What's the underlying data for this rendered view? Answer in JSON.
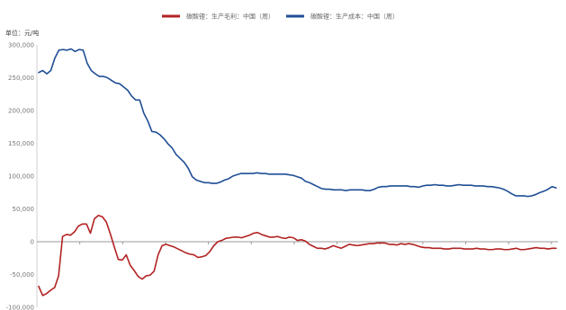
{
  "chart_data": {
    "type": "line",
    "unit_label": "单位：元/吨",
    "y_ticks": [
      "300,000",
      "250,000",
      "200,000",
      "150,000",
      "100,000",
      "50,000",
      "0",
      "-50,000",
      "-100,000"
    ],
    "ylim": [
      -100000,
      300000
    ],
    "grid": false,
    "legend_position": "top-center",
    "x_tick_count": 12,
    "series": [
      {
        "name": "碳酸锂：生产毛利：中国（周）",
        "color": "#b22222",
        "values": [
          -68000,
          -82000,
          -79000,
          -74000,
          -70000,
          -52000,
          8000,
          11000,
          10000,
          15000,
          24000,
          27000,
          27000,
          13000,
          35000,
          40000,
          38000,
          30000,
          12000,
          -8000,
          -27000,
          -28000,
          -20000,
          -36000,
          -44000,
          -53000,
          -57000,
          -52000,
          -51000,
          -45000,
          -20000,
          -6000,
          -4000,
          -6000,
          -8000,
          -11000,
          -14000,
          -17000,
          -19000,
          -20000,
          -24000,
          -23000,
          -21000,
          -15000,
          -6000,
          0,
          2000,
          5000,
          6000,
          7000,
          7000,
          6000,
          8000,
          10000,
          13000,
          14000,
          11000,
          9000,
          7000,
          7000,
          8000,
          6000,
          5000,
          7000,
          6000,
          2000,
          3000,
          1000,
          -4000,
          -7000,
          -10000,
          -10000,
          -11000,
          -9000,
          -6000,
          -8000,
          -10000,
          -7000,
          -4000,
          -5000,
          -6000,
          -5000,
          -4000,
          -3000,
          -3000,
          -2000,
          -2000,
          -2000,
          -4000,
          -4000,
          -5000,
          -3000,
          -4000,
          -3000,
          -4000,
          -6000,
          -8000,
          -9000,
          -9000,
          -10000,
          -10000,
          -10000,
          -11000,
          -11000,
          -10000,
          -10000,
          -10000,
          -11000,
          -11000,
          -11000,
          -10000,
          -11000,
          -11000,
          -12000,
          -12000,
          -11000,
          -11000,
          -12000,
          -12000,
          -11000,
          -10000,
          -12000,
          -12000,
          -11000,
          -10000,
          -9000,
          -10000,
          -10000,
          -11000,
          -10000,
          -10000
        ]
      },
      {
        "name": "碳酸锂：生产成本：中国（周）",
        "color": "#1f4e96",
        "values": [
          258000,
          261000,
          256000,
          261000,
          280000,
          292000,
          293000,
          292000,
          294000,
          290000,
          293000,
          292000,
          272000,
          261000,
          256000,
          252000,
          252000,
          250000,
          246000,
          242000,
          241000,
          236000,
          231000,
          222000,
          216000,
          216000,
          196000,
          184000,
          168000,
          167000,
          163000,
          157000,
          149000,
          143000,
          133000,
          127000,
          121000,
          112000,
          99000,
          94000,
          92000,
          90000,
          90000,
          89000,
          89000,
          91000,
          94000,
          96000,
          100000,
          102000,
          104000,
          104000,
          104000,
          104000,
          105000,
          104000,
          104000,
          103000,
          103000,
          103000,
          103000,
          103000,
          102000,
          101000,
          99000,
          97000,
          92000,
          90000,
          87000,
          84000,
          81000,
          80000,
          80000,
          79000,
          79000,
          79000,
          78000,
          79000,
          79000,
          79000,
          79000,
          78000,
          78000,
          80000,
          83000,
          84000,
          84000,
          85000,
          85000,
          85000,
          85000,
          85000,
          84000,
          84000,
          83000,
          85000,
          86000,
          86000,
          87000,
          86000,
          86000,
          85000,
          85000,
          86000,
          87000,
          86000,
          86000,
          86000,
          85000,
          85000,
          85000,
          84000,
          84000,
          83000,
          82000,
          80000,
          77000,
          73000,
          70000,
          70000,
          70000,
          69000,
          70000,
          72000,
          75000,
          77000,
          80000,
          84000,
          82000
        ]
      }
    ]
  }
}
